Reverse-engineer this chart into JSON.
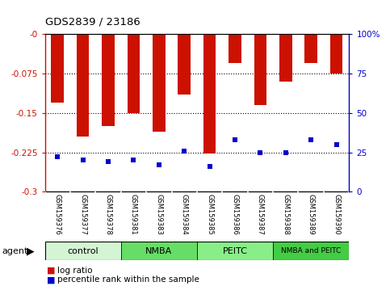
{
  "title": "GDS2839 / 23186",
  "samples": [
    "GSM159376",
    "GSM159377",
    "GSM159378",
    "GSM159381",
    "GSM159383",
    "GSM159384",
    "GSM159385",
    "GSM159386",
    "GSM159387",
    "GSM159388",
    "GSM159389",
    "GSM159390"
  ],
  "log_ratio": [
    -0.13,
    -0.195,
    -0.175,
    -0.15,
    -0.185,
    -0.115,
    -0.228,
    -0.055,
    -0.135,
    -0.09,
    -0.055,
    -0.075
  ],
  "percentile_rank": [
    22,
    20,
    19,
    20,
    17,
    26,
    16,
    33,
    25,
    25,
    33,
    30
  ],
  "groups": [
    {
      "label": "control",
      "indices": [
        0,
        1,
        2
      ],
      "color": "#d4f5d4"
    },
    {
      "label": "NMBA",
      "indices": [
        3,
        4,
        5
      ],
      "color": "#66dd66"
    },
    {
      "label": "PEITC",
      "indices": [
        6,
        7,
        8
      ],
      "color": "#88ee88"
    },
    {
      "label": "NMBA and PEITC",
      "indices": [
        9,
        10,
        11
      ],
      "color": "#44cc44"
    }
  ],
  "ylim_left": [
    -0.3,
    0.0
  ],
  "yticks_left": [
    0.0,
    -0.075,
    -0.15,
    -0.225,
    -0.3
  ],
  "ytick_labels_left": [
    "-0",
    "-0.075",
    "-0.15",
    "-0.225",
    "-0.3"
  ],
  "ylim_right": [
    0,
    100
  ],
  "yticks_right": [
    0,
    25,
    50,
    75,
    100
  ],
  "ytick_labels_right": [
    "0",
    "25",
    "50",
    "75",
    "100%"
  ],
  "bar_color": "#cc1100",
  "pct_color": "#0000cc",
  "bar_width": 0.5,
  "legend_log_ratio": "log ratio",
  "legend_pct": "percentile rank within the sample",
  "agent_label": "agent"
}
